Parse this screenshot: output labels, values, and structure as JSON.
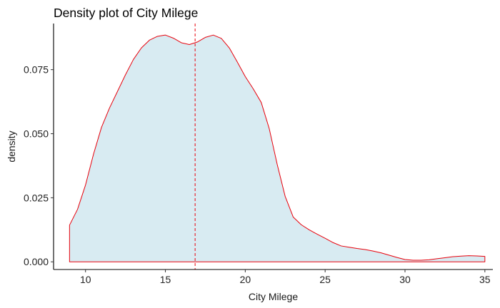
{
  "chart_data": {
    "type": "area",
    "title": "Density plot of City Milege",
    "xlabel": "City Milege",
    "ylabel": "density",
    "xlim": [
      8,
      35.5
    ],
    "ylim": [
      -0.003,
      0.093
    ],
    "x_ticks": [
      10,
      15,
      20,
      25,
      30,
      35
    ],
    "y_ticks": [
      0.0,
      0.025,
      0.05,
      0.075
    ],
    "x_tick_labels": [
      "10",
      "15",
      "20",
      "25",
      "30",
      "35"
    ],
    "y_tick_labels": [
      "0.000",
      "0.025",
      "0.050",
      "0.075"
    ],
    "grid": false,
    "legend": "none",
    "mean_line_x": 16.86,
    "colors": {
      "fill": "#d8ebf2",
      "line": "#e8000b",
      "axis": "#000000"
    },
    "series": [
      {
        "x": [
          9,
          9.5,
          10,
          10.5,
          11,
          11.5,
          12,
          12.5,
          13,
          13.5,
          14,
          14.5,
          15,
          15.5,
          16,
          16.5,
          17,
          17.5,
          18,
          18.5,
          19,
          19.5,
          20,
          20.5,
          21,
          21.5,
          22,
          22.5,
          23,
          23.5,
          24,
          24.5,
          25,
          25.5,
          26,
          26.5,
          27,
          27.5,
          28,
          28.5,
          29,
          29.5,
          30,
          30.5,
          31,
          31.5,
          32,
          32.5,
          33,
          33.5,
          34,
          34.5,
          35
        ],
        "y": [
          0.0143,
          0.0205,
          0.03,
          0.042,
          0.0525,
          0.06,
          0.0665,
          0.073,
          0.079,
          0.0835,
          0.0865,
          0.088,
          0.0885,
          0.0873,
          0.0855,
          0.0848,
          0.0858,
          0.0876,
          0.0885,
          0.0872,
          0.0835,
          0.078,
          0.0723,
          0.0675,
          0.0622,
          0.052,
          0.038,
          0.0255,
          0.0175,
          0.0145,
          0.0125,
          0.0108,
          0.0092,
          0.0075,
          0.0062,
          0.0057,
          0.0052,
          0.0048,
          0.0042,
          0.0035,
          0.0026,
          0.0017,
          0.0009,
          0.0006,
          0.0006,
          0.0008,
          0.0012,
          0.0016,
          0.002,
          0.0022,
          0.0024,
          0.0023,
          0.0021
        ]
      }
    ]
  }
}
